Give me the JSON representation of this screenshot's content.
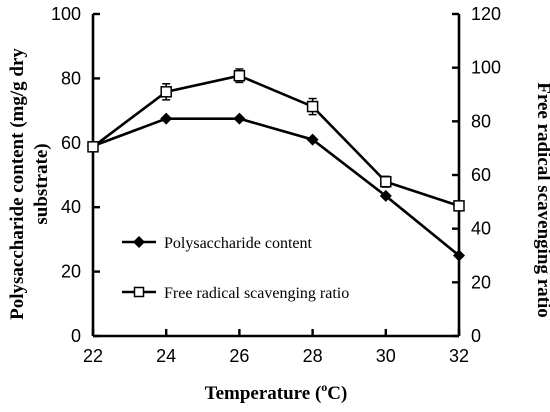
{
  "chart_data": {
    "type": "line",
    "x": [
      22,
      24,
      26,
      28,
      30,
      32
    ],
    "x_ticks": [
      "22",
      "24",
      "26",
      "28",
      "30",
      "32"
    ],
    "xlim": [
      22,
      32
    ],
    "left_axis": {
      "ylim": [
        0,
        100
      ],
      "ticks": [
        "0",
        "20",
        "40",
        "60",
        "80",
        "100"
      ],
      "tick_values": [
        0,
        20,
        40,
        60,
        80,
        100
      ],
      "label_line1": "Polysaccharide content (mg/g dry",
      "label_line2": "substrate)"
    },
    "right_axis": {
      "ylim": [
        0,
        120
      ],
      "ticks": [
        "0",
        "20",
        "40",
        "60",
        "80",
        "100",
        "120"
      ],
      "tick_values": [
        0,
        20,
        40,
        60,
        80,
        100,
        120
      ],
      "label": "Free radical scavenging ratio"
    },
    "xlabel_main": "Temperature (",
    "xlabel_sup": "o",
    "xlabel_end": "C)",
    "series": [
      {
        "name": "Polysaccharide content",
        "axis": "left",
        "marker": "diamond",
        "values": [
          59,
          67.5,
          67.5,
          61,
          43.5,
          25
        ]
      },
      {
        "name": "Free radical scavenging ratio",
        "axis": "right",
        "marker": "square-open",
        "values": [
          70.5,
          91,
          97,
          85.5,
          57.5,
          48.5
        ],
        "error": [
          1.5,
          3,
          2.5,
          3,
          2,
          1.5
        ]
      }
    ],
    "legend_position": "lower-left, inside plot",
    "grid": false
  }
}
